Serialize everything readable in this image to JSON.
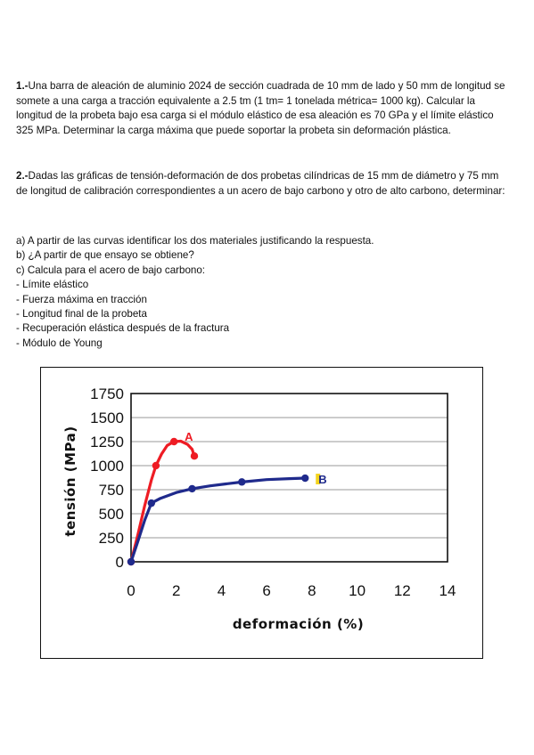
{
  "problem1": {
    "number": "1.-",
    "text": "Una barra de aleación de aluminio 2024 de sección cuadrada de 10 mm de lado y 50 mm de longitud se somete a una carga a tracción equivalente a 2.5 tm (1 tm= 1 tonelada métrica= 1000 kg). Calcular la longitud de la probeta bajo esa carga si el módulo elástico de esa aleación es 70 GPa y el límite elástico 325 MPa. Determinar la carga máxima que puede soportar la probeta sin deformación plástica."
  },
  "problem2": {
    "number": "2.-",
    "text": "Dadas las gráficas de tensión-deformación de dos probetas cilíndricas de 15 mm de diámetro y 75 mm de longitud de calibración correspondientes a un acero de bajo carbono y otro de alto carbono, determinar:",
    "items": [
      "a) A partir de las curvas identificar los dos materiales justificando la respuesta.",
      "b) ¿A partir de que ensayo se obtiene?",
      "c) Calcula para el acero de bajo carbono:",
      "- Límite elástico",
      "- Fuerza máxima en tracción",
      "- Longitud final de la probeta",
      "- Recuperación elástica después de la fractura",
      "- Módulo de Young"
    ]
  },
  "chart_data": {
    "type": "line",
    "title": "",
    "xlabel": "deformación (%)",
    "ylabel": "tensión (MPa)",
    "xlim": [
      0,
      14
    ],
    "ylim": [
      0,
      1750
    ],
    "x_ticks": [
      "0",
      "2",
      "4",
      "6",
      "8",
      "10",
      "12",
      "14"
    ],
    "y_ticks": [
      "0",
      "250",
      "500",
      "750",
      "1000",
      "1250",
      "1500",
      "1750"
    ],
    "grid": true,
    "series": [
      {
        "name": "A",
        "color": "#ee1c24",
        "points": [
          [
            0,
            0
          ],
          [
            1.1,
            1000
          ],
          [
            1.9,
            1250
          ],
          [
            2.8,
            1100
          ]
        ],
        "curve": [
          [
            0,
            0
          ],
          [
            0.3,
            280
          ],
          [
            0.6,
            580
          ],
          [
            0.9,
            850
          ],
          [
            1.1,
            1000
          ],
          [
            1.35,
            1120
          ],
          [
            1.6,
            1210
          ],
          [
            1.9,
            1250
          ],
          [
            2.2,
            1255
          ],
          [
            2.5,
            1220
          ],
          [
            2.7,
            1170
          ],
          [
            2.8,
            1100
          ]
        ]
      },
      {
        "name": "B",
        "color": "#1f2a8c",
        "points": [
          [
            0,
            0
          ],
          [
            0.9,
            610
          ],
          [
            2.7,
            760
          ],
          [
            4.9,
            830
          ],
          [
            7.7,
            870
          ]
        ],
        "curve": [
          [
            0,
            0
          ],
          [
            0.3,
            210
          ],
          [
            0.6,
            430
          ],
          [
            0.9,
            610
          ],
          [
            1.3,
            660
          ],
          [
            2.0,
            720
          ],
          [
            2.7,
            760
          ],
          [
            3.5,
            790
          ],
          [
            4.2,
            810
          ],
          [
            4.9,
            830
          ],
          [
            6.0,
            855
          ],
          [
            7.0,
            865
          ],
          [
            7.7,
            870
          ]
        ]
      }
    ]
  }
}
